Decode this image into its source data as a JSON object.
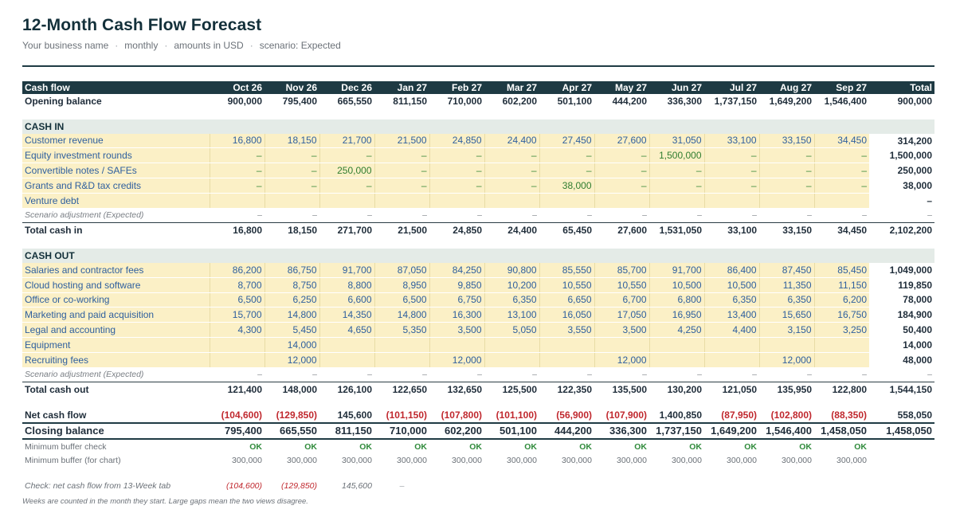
{
  "title": "12-Month Cash Flow Forecast",
  "subtitle": {
    "business": "Your business name",
    "sep": "·",
    "period": "monthly",
    "units": "amounts in USD",
    "scenario": "scenario: Expected"
  },
  "colors": {
    "header_bg": "#1e3a43",
    "input_bg": "#fbf0c6",
    "input_text": "#2e5f9e",
    "negative": "#c0282e",
    "ok": "#2f8a3b",
    "section_bg": "#e4ebe7"
  },
  "header": {
    "label": "Cash flow",
    "months": [
      "Oct 26",
      "Nov 26",
      "Dec 26",
      "Jan 27",
      "Feb 27",
      "Mar 27",
      "Apr 27",
      "May 27",
      "Jun 27",
      "Jul 27",
      "Aug 27",
      "Sep 27"
    ],
    "total": "Total"
  },
  "opening": {
    "label": "Opening balance",
    "values": [
      "900,000",
      "795,400",
      "665,550",
      "811,150",
      "710,000",
      "602,200",
      "501,100",
      "444,200",
      "336,300",
      "1,737,150",
      "1,649,200",
      "1,546,400"
    ],
    "total": "900,000"
  },
  "cash_in": {
    "title": "CASH IN",
    "rows": [
      {
        "label": "Customer revenue",
        "values": [
          "16,800",
          "18,150",
          "21,700",
          "21,500",
          "24,850",
          "24,400",
          "27,450",
          "27,600",
          "31,050",
          "33,100",
          "33,150",
          "34,450"
        ],
        "total": "314,200"
      },
      {
        "label": "Equity investment rounds",
        "values": [
          "–",
          "–",
          "–",
          "–",
          "–",
          "–",
          "–",
          "–",
          "1,500,000",
          "–",
          "–",
          "–"
        ],
        "total": "1,500,000"
      },
      {
        "label": "Convertible notes / SAFEs",
        "values": [
          "–",
          "–",
          "250,000",
          "–",
          "–",
          "–",
          "–",
          "–",
          "–",
          "–",
          "–",
          "–"
        ],
        "total": "250,000"
      },
      {
        "label": "Grants and R&D tax credits",
        "values": [
          "–",
          "–",
          "–",
          "–",
          "–",
          "–",
          "38,000",
          "–",
          "–",
          "–",
          "–",
          "–"
        ],
        "total": "38,000"
      },
      {
        "label": "Venture debt",
        "values": [
          "",
          "",
          "",
          "",
          "",
          "",
          "",
          "",
          "",
          "",
          "",
          ""
        ],
        "total": "–"
      }
    ],
    "adjustment": {
      "label": "Scenario adjustment (Expected)",
      "values": [
        "–",
        "–",
        "–",
        "–",
        "–",
        "–",
        "–",
        "–",
        "–",
        "–",
        "–",
        "–"
      ],
      "total": "–"
    },
    "total": {
      "label": "Total cash in",
      "values": [
        "16,800",
        "18,150",
        "271,700",
        "21,500",
        "24,850",
        "24,400",
        "65,450",
        "27,600",
        "1,531,050",
        "33,100",
        "33,150",
        "34,450"
      ],
      "total": "2,102,200"
    }
  },
  "cash_out": {
    "title": "CASH OUT",
    "rows": [
      {
        "label": "Salaries and contractor fees",
        "values": [
          "86,200",
          "86,750",
          "91,700",
          "87,050",
          "84,250",
          "90,800",
          "85,550",
          "85,700",
          "91,700",
          "86,400",
          "87,450",
          "85,450"
        ],
        "total": "1,049,000"
      },
      {
        "label": "Cloud hosting and software",
        "values": [
          "8,700",
          "8,750",
          "8,800",
          "8,950",
          "9,850",
          "10,200",
          "10,550",
          "10,550",
          "10,500",
          "10,500",
          "11,350",
          "11,150"
        ],
        "total": "119,850"
      },
      {
        "label": "Office or co-working",
        "values": [
          "6,500",
          "6,250",
          "6,600",
          "6,500",
          "6,750",
          "6,350",
          "6,650",
          "6,700",
          "6,800",
          "6,350",
          "6,350",
          "6,200"
        ],
        "total": "78,000"
      },
      {
        "label": "Marketing and paid acquisition",
        "values": [
          "15,700",
          "14,800",
          "14,350",
          "14,800",
          "16,300",
          "13,100",
          "16,050",
          "17,050",
          "16,950",
          "13,400",
          "15,650",
          "16,750"
        ],
        "total": "184,900"
      },
      {
        "label": "Legal and accounting",
        "values": [
          "4,300",
          "5,450",
          "4,650",
          "5,350",
          "3,500",
          "5,050",
          "3,550",
          "3,500",
          "4,250",
          "4,400",
          "3,150",
          "3,250"
        ],
        "total": "50,400"
      },
      {
        "label": "Equipment",
        "values": [
          "",
          "14,000",
          "",
          "",
          "",
          "",
          "",
          "",
          "",
          "",
          "",
          ""
        ],
        "total": "14,000"
      },
      {
        "label": "Recruiting fees",
        "values": [
          "",
          "12,000",
          "",
          "",
          "12,000",
          "",
          "",
          "12,000",
          "",
          "",
          "12,000",
          ""
        ],
        "total": "48,000"
      }
    ],
    "adjustment": {
      "label": "Scenario adjustment (Expected)",
      "values": [
        "–",
        "–",
        "–",
        "–",
        "–",
        "–",
        "–",
        "–",
        "–",
        "–",
        "–",
        "–"
      ],
      "total": "–"
    },
    "total": {
      "label": "Total cash out",
      "values": [
        "121,400",
        "148,000",
        "126,100",
        "122,650",
        "132,650",
        "125,500",
        "122,350",
        "135,500",
        "130,200",
        "121,050",
        "135,950",
        "122,800"
      ],
      "total": "1,544,150"
    }
  },
  "net_cash_flow": {
    "label": "Net cash flow",
    "values": [
      "(104,600)",
      "(129,850)",
      "145,600",
      "(101,150)",
      "(107,800)",
      "(101,100)",
      "(56,900)",
      "(107,900)",
      "1,400,850",
      "(87,950)",
      "(102,800)",
      "(88,350)"
    ],
    "total": "558,050"
  },
  "closing_balance": {
    "label": "Closing balance",
    "values": [
      "795,400",
      "665,550",
      "811,150",
      "710,000",
      "602,200",
      "501,100",
      "444,200",
      "336,300",
      "1,737,150",
      "1,649,200",
      "1,546,400",
      "1,458,050"
    ],
    "total": "1,458,050"
  },
  "buffer_check": {
    "label": "Minimum buffer check",
    "values": [
      "OK",
      "OK",
      "OK",
      "OK",
      "OK",
      "OK",
      "OK",
      "OK",
      "OK",
      "OK",
      "OK",
      "OK"
    ]
  },
  "buffer_chart": {
    "label": "Minimum buffer (for chart)",
    "values": [
      "300,000",
      "300,000",
      "300,000",
      "300,000",
      "300,000",
      "300,000",
      "300,000",
      "300,000",
      "300,000",
      "300,000",
      "300,000",
      "300,000"
    ]
  },
  "verify": {
    "label": "Check: net cash flow from 13-Week tab",
    "values": [
      "(104,600)",
      "(129,850)",
      "145,600",
      "–"
    ]
  },
  "footnote": "Weeks are counted in the month they start. Large gaps mean the two views disagree."
}
